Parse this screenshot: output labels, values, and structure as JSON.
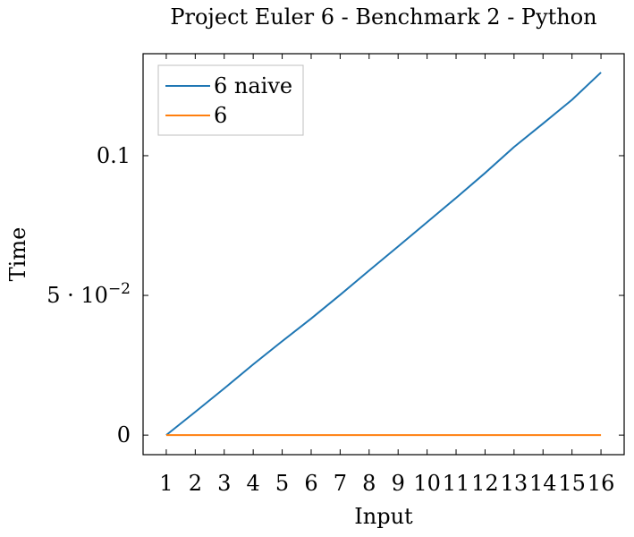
{
  "chart_data": {
    "type": "line",
    "title": "Project Euler 6 - Benchmark 2 - Python",
    "xlabel": "Input",
    "ylabel": "Time",
    "x": [
      1,
      2,
      3,
      4,
      5,
      6,
      7,
      8,
      9,
      10,
      11,
      12,
      13,
      14,
      15,
      16
    ],
    "x_tick_labels": [
      "1",
      "2",
      "3",
      "4",
      "5",
      "6",
      "7",
      "8",
      "9",
      "10",
      "11",
      "12",
      "13",
      "14",
      "15",
      "16"
    ],
    "xlim": [
      0.2,
      16.8
    ],
    "ylim": [
      -0.007,
      0.1365
    ],
    "y_ticks": [
      {
        "value": 0,
        "label": "0"
      },
      {
        "value": 0.05,
        "label": "5 · 10"
      },
      {
        "value": 0.1,
        "label": "0.1"
      }
    ],
    "y_tick_exponent": "−2",
    "legend_position": "top-left",
    "grid": false,
    "series": [
      {
        "name": "6 naive",
        "color": "#1f77b4",
        "values": [
          0.0,
          0.0083,
          0.0167,
          0.0253,
          0.0336,
          0.0417,
          0.0502,
          0.0589,
          0.0675,
          0.0762,
          0.0849,
          0.0938,
          0.1031,
          0.1115,
          0.12,
          0.1298
        ]
      },
      {
        "name": "6",
        "color": "#ff7f0e",
        "values": [
          0.0,
          0.0,
          0.0,
          0.0,
          0.0,
          0.0,
          0.0,
          0.0,
          0.0,
          0.0,
          0.0,
          0.0,
          0.0,
          0.0,
          0.0,
          0.0
        ]
      }
    ]
  }
}
